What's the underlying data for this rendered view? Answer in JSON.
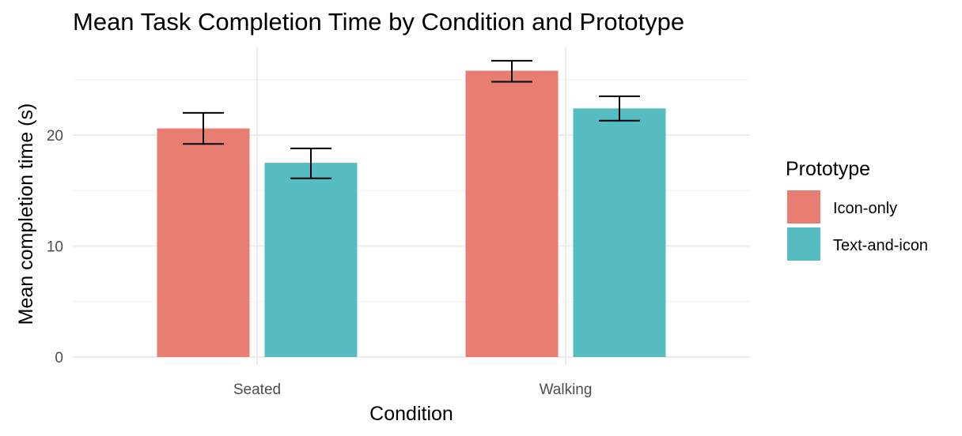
{
  "chart_data": {
    "type": "bar",
    "title": "Mean Task Completion Time by Condition and Prototype",
    "xlabel": "Condition",
    "ylabel": "Mean completion time (s)",
    "categories": [
      "Seated",
      "Walking"
    ],
    "series": [
      {
        "name": "Icon-only",
        "color": "#E87D72",
        "values": [
          20.6,
          25.8
        ],
        "error_low": [
          19.2,
          24.8
        ],
        "error_high": [
          22.0,
          26.7
        ]
      },
      {
        "name": "Text-and-icon",
        "color": "#56BCC2",
        "values": [
          17.5,
          22.4
        ],
        "error_low": [
          16.1,
          21.3
        ],
        "error_high": [
          18.8,
          23.5
        ]
      }
    ],
    "ylim": [
      0,
      27
    ],
    "yticks": [
      0,
      10,
      20
    ],
    "grid": true,
    "legend": {
      "title": "Prototype",
      "position": "right"
    }
  }
}
